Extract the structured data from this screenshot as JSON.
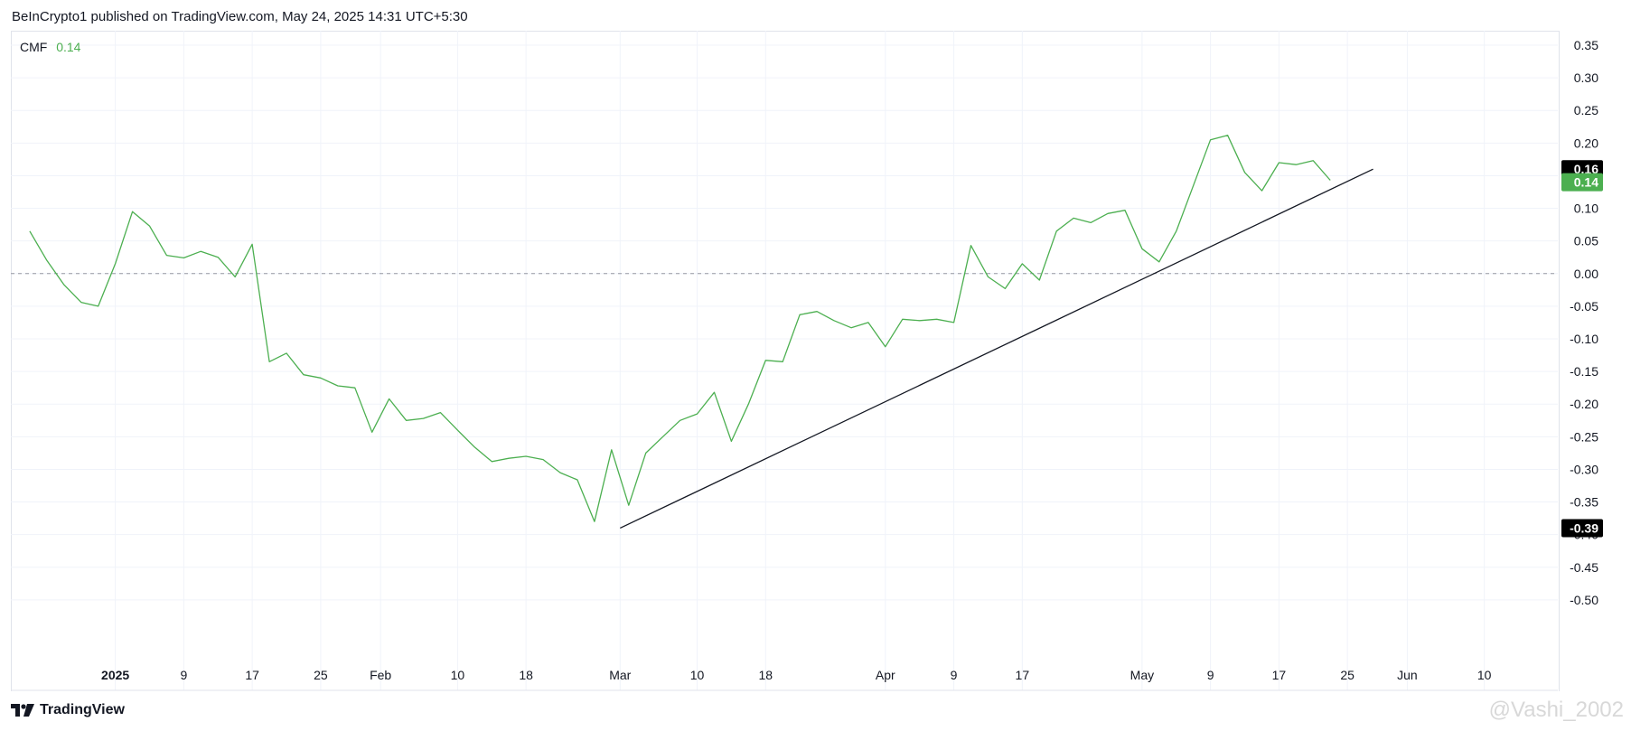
{
  "header": {
    "published": "BeInCrypto1 published on TradingView.com, May 24, 2025 14:31 UTC+5:30"
  },
  "legend": {
    "name": "CMF",
    "value": "0.14"
  },
  "footer": {
    "brand": "TradingView"
  },
  "watermark": "@Vashi_2002",
  "colors": {
    "line": "#4caf50",
    "trendline": "#131722",
    "grid": "#f0f3fa",
    "zero": "#9598a1",
    "text": "#131722"
  },
  "chart_data": {
    "type": "line",
    "title": "",
    "xlabel": "",
    "ylabel": "",
    "ylim": [
      -0.55,
      0.35
    ],
    "xlim": [
      "2024-12-20",
      "2025-06-15"
    ],
    "grid": true,
    "y_ticks": [
      "0.35",
      "0.30",
      "0.25",
      "0.20",
      "0.15",
      "0.10",
      "0.05",
      "0.00",
      "-0.05",
      "-0.10",
      "-0.15",
      "-0.20",
      "-0.25",
      "-0.30",
      "-0.35",
      "-0.40",
      "-0.45",
      "-0.50"
    ],
    "x_ticks": [
      {
        "label": "2025",
        "date": "2025-01-01",
        "bold": true
      },
      {
        "label": "9",
        "date": "2025-01-09"
      },
      {
        "label": "17",
        "date": "2025-01-17"
      },
      {
        "label": "25",
        "date": "2025-01-25"
      },
      {
        "label": "Feb",
        "date": "2025-02-01"
      },
      {
        "label": "10",
        "date": "2025-02-10"
      },
      {
        "label": "18",
        "date": "2025-02-18"
      },
      {
        "label": "Mar",
        "date": "2025-03-01"
      },
      {
        "label": "10",
        "date": "2025-03-10"
      },
      {
        "label": "18",
        "date": "2025-03-18"
      },
      {
        "label": "Apr",
        "date": "2025-04-01"
      },
      {
        "label": "9",
        "date": "2025-04-09"
      },
      {
        "label": "17",
        "date": "2025-04-17"
      },
      {
        "label": "May",
        "date": "2025-05-01"
      },
      {
        "label": "9",
        "date": "2025-05-09"
      },
      {
        "label": "17",
        "date": "2025-05-17"
      },
      {
        "label": "25",
        "date": "2025-05-25"
      },
      {
        "label": "Jun",
        "date": "2025-06-01"
      },
      {
        "label": "10",
        "date": "2025-06-10"
      }
    ],
    "series": [
      {
        "name": "CMF",
        "x": [
          "2024-12-22",
          "2024-12-24",
          "2024-12-26",
          "2024-12-28",
          "2024-12-30",
          "2025-01-01",
          "2025-01-03",
          "2025-01-05",
          "2025-01-07",
          "2025-01-09",
          "2025-01-11",
          "2025-01-13",
          "2025-01-15",
          "2025-01-17",
          "2025-01-19",
          "2025-01-21",
          "2025-01-23",
          "2025-01-25",
          "2025-01-27",
          "2025-01-29",
          "2025-01-31",
          "2025-02-02",
          "2025-02-04",
          "2025-02-06",
          "2025-02-08",
          "2025-02-10",
          "2025-02-12",
          "2025-02-14",
          "2025-02-16",
          "2025-02-18",
          "2025-02-20",
          "2025-02-22",
          "2025-02-24",
          "2025-02-26",
          "2025-02-28",
          "2025-03-02",
          "2025-03-04",
          "2025-03-06",
          "2025-03-08",
          "2025-03-10",
          "2025-03-12",
          "2025-03-14",
          "2025-03-16",
          "2025-03-18",
          "2025-03-20",
          "2025-03-22",
          "2025-03-24",
          "2025-03-26",
          "2025-03-28",
          "2025-03-30",
          "2025-04-01",
          "2025-04-03",
          "2025-04-05",
          "2025-04-07",
          "2025-04-09",
          "2025-04-11",
          "2025-04-13",
          "2025-04-15",
          "2025-04-17",
          "2025-04-19",
          "2025-04-21",
          "2025-04-23",
          "2025-04-25",
          "2025-04-27",
          "2025-04-29",
          "2025-05-01",
          "2025-05-03",
          "2025-05-05",
          "2025-05-07",
          "2025-05-09",
          "2025-05-11",
          "2025-05-13",
          "2025-05-15",
          "2025-05-17",
          "2025-05-19",
          "2025-05-21",
          "2025-05-23"
        ],
        "values": [
          0.065,
          0.02,
          -0.017,
          -0.044,
          -0.05,
          0.015,
          0.095,
          0.073,
          0.028,
          0.024,
          0.034,
          0.025,
          -0.005,
          0.045,
          -0.135,
          -0.122,
          -0.155,
          -0.16,
          -0.172,
          -0.175,
          -0.243,
          -0.192,
          -0.225,
          -0.222,
          -0.213,
          -0.24,
          -0.266,
          -0.288,
          -0.283,
          -0.28,
          -0.285,
          -0.305,
          -0.316,
          -0.38,
          -0.27,
          -0.355,
          -0.275,
          -0.25,
          -0.225,
          -0.215,
          -0.182,
          -0.257,
          -0.2,
          -0.133,
          -0.135,
          -0.063,
          -0.058,
          -0.072,
          -0.083,
          -0.075,
          -0.112,
          -0.07,
          -0.072,
          -0.07,
          -0.075,
          0.043,
          -0.005,
          -0.023,
          0.015,
          -0.01,
          0.065,
          0.085,
          0.078,
          0.092,
          0.097,
          0.038,
          0.018,
          0.065,
          0.135,
          0.205,
          0.212,
          0.155,
          0.127,
          0.17,
          0.167,
          0.173,
          0.143
        ]
      }
    ],
    "trendline": {
      "x1": "2025-03-01",
      "y1": -0.39,
      "x2": "2025-05-28",
      "y2": 0.16
    },
    "price_labels": [
      {
        "text": "0.16",
        "value": 0.16,
        "style": "black"
      },
      {
        "text": "0.14",
        "value": 0.14,
        "style": "green"
      },
      {
        "text": "-0.39",
        "value": -0.39,
        "style": "black"
      }
    ],
    "zero_line": 0
  }
}
